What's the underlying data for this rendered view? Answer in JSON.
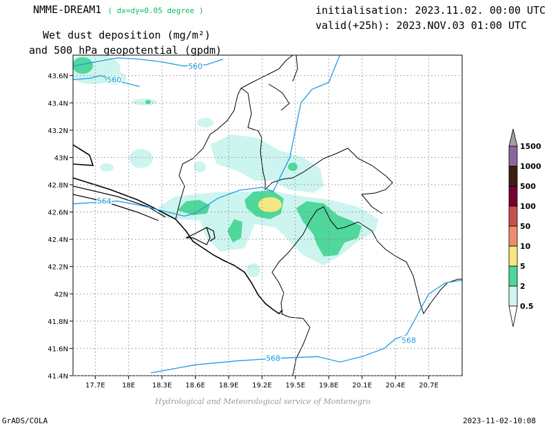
{
  "header": {
    "model_name": "NMME-DREAM1",
    "resolution": "( dx=dy=0.05 degree )",
    "title_line1": "Wet dust deposition (mg/m²)",
    "title_line2": "and 500 hPa geopotential (gpdm)",
    "initialisation": "initialisation: 2023.11.02. 00:00 UTC",
    "valid": "valid(+25h): 2023.NOV.03 01:00 UTC"
  },
  "footer": {
    "credit": "Hydrological and Meteorological service of Montenegro",
    "software": "GrADS/COLA",
    "timestamp": "2023-11-02-10:08"
  },
  "map": {
    "lon_range": [
      17.5,
      21.0
    ],
    "lat_range": [
      41.4,
      43.75
    ],
    "lon_ticks": [
      17.7,
      18.0,
      18.3,
      18.6,
      18.9,
      19.2,
      19.5,
      19.8,
      20.1,
      20.4,
      20.7
    ],
    "lon_tick_labels": [
      "17.7E",
      "18E",
      "18.3E",
      "18.6E",
      "18.9E",
      "19.2E",
      "19.5E",
      "19.8E",
      "20.1E",
      "20.4E",
      "20.7E"
    ],
    "lat_ticks": [
      41.4,
      41.6,
      41.8,
      42.0,
      42.2,
      42.4,
      42.6,
      42.8,
      43.0,
      43.2,
      43.4,
      43.6
    ],
    "lat_tick_labels": [
      "41.4N",
      "41.6N",
      "41.8N",
      "42N",
      "42.2N",
      "42.4N",
      "42.6N",
      "42.8N",
      "43N",
      "43.2N",
      "43.4N",
      "43.6N"
    ],
    "grid": true,
    "contour_color": "#1e9be6",
    "contours": [
      {
        "label": "560",
        "label_at": [
          18.6,
          43.67
        ],
        "points": [
          [
            17.5,
            43.67
          ],
          [
            17.7,
            43.7
          ],
          [
            17.9,
            43.73
          ],
          [
            18.1,
            43.72
          ],
          [
            18.3,
            43.7
          ],
          [
            18.5,
            43.67
          ],
          [
            18.7,
            43.68
          ],
          [
            18.85,
            43.72
          ]
        ]
      },
      {
        "label": "560",
        "label_at": [
          17.87,
          43.57
        ],
        "points": [
          [
            17.5,
            43.57
          ],
          [
            17.65,
            43.58
          ],
          [
            17.75,
            43.6
          ],
          [
            17.95,
            43.55
          ],
          [
            18.1,
            43.52
          ]
        ]
      },
      {
        "label": "564",
        "label_at": [
          17.78,
          42.68
        ],
        "points": [
          [
            17.5,
            42.66
          ],
          [
            17.7,
            42.67
          ],
          [
            17.9,
            42.68
          ],
          [
            18.1,
            42.65
          ],
          [
            18.3,
            42.61
          ],
          [
            18.5,
            42.57
          ],
          [
            18.6,
            42.59
          ],
          [
            18.8,
            42.7
          ],
          [
            19.0,
            42.76
          ],
          [
            19.2,
            42.78
          ],
          [
            19.3,
            42.75
          ],
          [
            19.45,
            43.0
          ],
          [
            19.5,
            43.2
          ],
          [
            19.55,
            43.4
          ],
          [
            19.65,
            43.5
          ],
          [
            19.8,
            43.55
          ],
          [
            19.9,
            43.75
          ]
        ]
      },
      {
        "label": "568",
        "label_at": [
          19.3,
          41.53
        ],
        "points": [
          [
            18.2,
            41.42
          ],
          [
            18.6,
            41.48
          ],
          [
            19.0,
            41.51
          ],
          [
            19.4,
            41.53
          ],
          [
            19.7,
            41.54
          ],
          [
            19.9,
            41.5
          ],
          [
            20.1,
            41.54
          ],
          [
            20.3,
            41.6
          ],
          [
            20.4,
            41.67
          ],
          [
            20.5,
            41.7
          ],
          [
            20.6,
            41.85
          ],
          [
            20.7,
            42.0
          ],
          [
            20.85,
            42.08
          ],
          [
            21.0,
            42.1
          ]
        ]
      },
      {
        "label": "568",
        "label_at": [
          20.52,
          41.66
        ],
        "points": []
      }
    ],
    "colorbar": {
      "levels": [
        "0.5",
        "2",
        "5",
        "10",
        "50",
        "100",
        "500",
        "1000",
        "1500"
      ],
      "colors": [
        "#cdf5ef",
        "#50d79b",
        "#f4e880",
        "#ef8c6c",
        "#c8504c",
        "#780032",
        "#3c1e14",
        "#8c64a0",
        "#a0a0a0"
      ]
    }
  }
}
